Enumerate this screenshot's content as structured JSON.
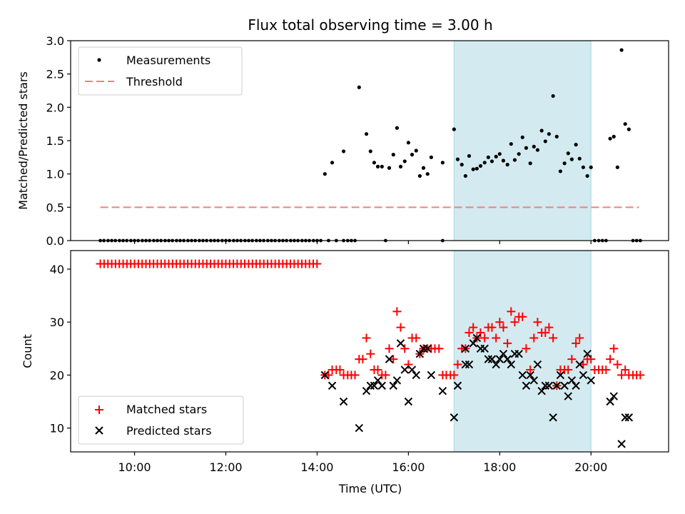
{
  "chart_data": {
    "type": "scatter",
    "title": "Flux total observing time = 3.00 h",
    "xlabel": "Time (UTC)",
    "x_ticks": [
      10,
      12,
      14,
      16,
      18,
      20
    ],
    "x_tick_labels": [
      "10:00",
      "12:00",
      "14:00",
      "16:00",
      "18:00",
      "20:00"
    ],
    "xlim": [
      8.6,
      21.7
    ],
    "shaded_interval": [
      17.0,
      20.0
    ],
    "shade_color": "#d3ebf0",
    "top": {
      "ylabel": "Matched/Predicted stars",
      "ylim": [
        0,
        3
      ],
      "y_ticks": [
        0.0,
        0.5,
        1.0,
        1.5,
        2.0,
        2.5,
        3.0
      ],
      "y_tick_labels": [
        "0.0",
        "0.5",
        "1.0",
        "1.5",
        "2.0",
        "2.5",
        "3.0"
      ],
      "threshold": {
        "value": 0.5,
        "x_range": [
          9.25,
          21.05
        ],
        "color": "#f08080"
      },
      "legend": [
        {
          "label": "Measurements",
          "marker": "dot",
          "color": "#000000"
        },
        {
          "label": "Threshold",
          "marker": "dash",
          "color": "#f08080"
        }
      ],
      "zero_points": [
        9.25,
        9.33,
        9.42,
        9.5,
        9.58,
        9.67,
        9.75,
        9.83,
        9.92,
        10.0,
        10.08,
        10.17,
        10.25,
        10.33,
        10.42,
        10.5,
        10.58,
        10.67,
        10.75,
        10.83,
        10.92,
        11.0,
        11.08,
        11.17,
        11.25,
        11.33,
        11.42,
        11.5,
        11.58,
        11.67,
        11.75,
        11.83,
        11.92,
        12.0,
        12.08,
        12.17,
        12.25,
        12.33,
        12.42,
        12.5,
        12.58,
        12.67,
        12.75,
        12.83,
        12.92,
        13.0,
        13.08,
        13.17,
        13.25,
        13.33,
        13.42,
        13.5,
        13.58,
        13.67,
        13.75,
        13.83,
        13.92,
        14.0,
        14.08,
        14.25,
        14.42,
        14.58,
        14.67,
        14.75,
        14.83,
        15.5,
        16.75,
        20.08,
        20.17,
        20.25,
        20.33,
        20.92,
        21.0,
        21.08
      ],
      "measurements": [
        {
          "x": 14.17,
          "y": 1.0
        },
        {
          "x": 14.33,
          "y": 1.17
        },
        {
          "x": 14.58,
          "y": 1.34
        },
        {
          "x": 14.92,
          "y": 2.3
        },
        {
          "x": 15.08,
          "y": 1.6
        },
        {
          "x": 15.17,
          "y": 1.34
        },
        {
          "x": 15.25,
          "y": 1.17
        },
        {
          "x": 15.33,
          "y": 1.11
        },
        {
          "x": 15.42,
          "y": 1.11
        },
        {
          "x": 15.58,
          "y": 1.09
        },
        {
          "x": 15.67,
          "y": 1.29
        },
        {
          "x": 15.75,
          "y": 1.69
        },
        {
          "x": 15.83,
          "y": 1.11
        },
        {
          "x": 15.92,
          "y": 1.19
        },
        {
          "x": 16.0,
          "y": 1.47
        },
        {
          "x": 16.08,
          "y": 1.29
        },
        {
          "x": 16.17,
          "y": 1.35
        },
        {
          "x": 16.25,
          "y": 0.97
        },
        {
          "x": 16.33,
          "y": 1.09
        },
        {
          "x": 16.42,
          "y": 1.0
        },
        {
          "x": 16.5,
          "y": 1.25
        },
        {
          "x": 16.75,
          "y": 1.17
        },
        {
          "x": 17.0,
          "y": 1.67
        },
        {
          "x": 17.08,
          "y": 1.22
        },
        {
          "x": 17.17,
          "y": 1.14
        },
        {
          "x": 17.25,
          "y": 0.97
        },
        {
          "x": 17.33,
          "y": 1.27
        },
        {
          "x": 17.42,
          "y": 1.07
        },
        {
          "x": 17.5,
          "y": 1.08
        },
        {
          "x": 17.58,
          "y": 1.12
        },
        {
          "x": 17.67,
          "y": 1.17
        },
        {
          "x": 17.75,
          "y": 1.25
        },
        {
          "x": 17.83,
          "y": 1.19
        },
        {
          "x": 17.92,
          "y": 1.26
        },
        {
          "x": 18.0,
          "y": 1.3
        },
        {
          "x": 18.08,
          "y": 1.2
        },
        {
          "x": 18.17,
          "y": 1.14
        },
        {
          "x": 18.25,
          "y": 1.45
        },
        {
          "x": 18.33,
          "y": 1.21
        },
        {
          "x": 18.42,
          "y": 1.3
        },
        {
          "x": 18.5,
          "y": 1.55
        },
        {
          "x": 18.58,
          "y": 1.39
        },
        {
          "x": 18.67,
          "y": 1.16
        },
        {
          "x": 18.75,
          "y": 1.41
        },
        {
          "x": 18.83,
          "y": 1.36
        },
        {
          "x": 18.92,
          "y": 1.65
        },
        {
          "x": 19.0,
          "y": 1.49
        },
        {
          "x": 19.08,
          "y": 1.6
        },
        {
          "x": 19.17,
          "y": 2.17
        },
        {
          "x": 19.25,
          "y": 1.56
        },
        {
          "x": 19.33,
          "y": 1.04
        },
        {
          "x": 19.42,
          "y": 1.16
        },
        {
          "x": 19.5,
          "y": 1.31
        },
        {
          "x": 19.58,
          "y": 1.22
        },
        {
          "x": 19.67,
          "y": 1.44
        },
        {
          "x": 19.75,
          "y": 1.23
        },
        {
          "x": 19.83,
          "y": 1.1
        },
        {
          "x": 19.92,
          "y": 0.97
        },
        {
          "x": 20.0,
          "y": 1.1
        },
        {
          "x": 20.42,
          "y": 1.53
        },
        {
          "x": 20.5,
          "y": 1.56
        },
        {
          "x": 20.58,
          "y": 1.1
        },
        {
          "x": 20.67,
          "y": 2.86
        },
        {
          "x": 20.75,
          "y": 1.75
        },
        {
          "x": 20.83,
          "y": 1.67
        }
      ]
    },
    "bottom": {
      "ylabel": "Count",
      "ylim": [
        5.5,
        43.5
      ],
      "y_ticks": [
        10,
        20,
        30,
        40
      ],
      "y_tick_labels": [
        "10",
        "20",
        "30",
        "40"
      ],
      "legend": [
        {
          "label": "Matched stars",
          "marker": "plus",
          "color": "#ff0000"
        },
        {
          "label": "Predicted stars",
          "marker": "x",
          "color": "#000000"
        }
      ],
      "matched_const": {
        "value": 41,
        "x_start": 9.25,
        "x_end": 14.08,
        "step": 0.0833
      },
      "matched": [
        {
          "x": 14.17,
          "y": 20
        },
        {
          "x": 14.25,
          "y": 20
        },
        {
          "x": 14.33,
          "y": 21
        },
        {
          "x": 14.42,
          "y": 21
        },
        {
          "x": 14.5,
          "y": 21
        },
        {
          "x": 14.58,
          "y": 20
        },
        {
          "x": 14.67,
          "y": 20
        },
        {
          "x": 14.75,
          "y": 20
        },
        {
          "x": 14.83,
          "y": 20
        },
        {
          "x": 14.92,
          "y": 23
        },
        {
          "x": 15.0,
          "y": 23
        },
        {
          "x": 15.08,
          "y": 27
        },
        {
          "x": 15.17,
          "y": 24
        },
        {
          "x": 15.25,
          "y": 21
        },
        {
          "x": 15.33,
          "y": 21
        },
        {
          "x": 15.42,
          "y": 20
        },
        {
          "x": 15.5,
          "y": 20
        },
        {
          "x": 15.58,
          "y": 25
        },
        {
          "x": 15.67,
          "y": 23
        },
        {
          "x": 15.75,
          "y": 32
        },
        {
          "x": 15.83,
          "y": 29
        },
        {
          "x": 15.92,
          "y": 25
        },
        {
          "x": 16.0,
          "y": 22
        },
        {
          "x": 16.08,
          "y": 27
        },
        {
          "x": 16.17,
          "y": 27
        },
        {
          "x": 16.25,
          "y": 24
        },
        {
          "x": 16.33,
          "y": 25
        },
        {
          "x": 16.42,
          "y": 25
        },
        {
          "x": 16.5,
          "y": 25
        },
        {
          "x": 16.58,
          "y": 25
        },
        {
          "x": 16.67,
          "y": 25
        },
        {
          "x": 16.75,
          "y": 20
        },
        {
          "x": 16.83,
          "y": 20
        },
        {
          "x": 16.92,
          "y": 20
        },
        {
          "x": 17.0,
          "y": 20
        },
        {
          "x": 17.08,
          "y": 22
        },
        {
          "x": 17.17,
          "y": 25
        },
        {
          "x": 17.25,
          "y": 25
        },
        {
          "x": 17.33,
          "y": 28
        },
        {
          "x": 17.42,
          "y": 29
        },
        {
          "x": 17.5,
          "y": 27
        },
        {
          "x": 17.58,
          "y": 28
        },
        {
          "x": 17.67,
          "y": 27
        },
        {
          "x": 17.75,
          "y": 29
        },
        {
          "x": 17.83,
          "y": 29
        },
        {
          "x": 17.92,
          "y": 27
        },
        {
          "x": 18.0,
          "y": 30
        },
        {
          "x": 18.08,
          "y": 29
        },
        {
          "x": 18.17,
          "y": 26
        },
        {
          "x": 18.25,
          "y": 32
        },
        {
          "x": 18.33,
          "y": 30
        },
        {
          "x": 18.42,
          "y": 31
        },
        {
          "x": 18.5,
          "y": 31
        },
        {
          "x": 18.58,
          "y": 25
        },
        {
          "x": 18.67,
          "y": 21
        },
        {
          "x": 18.75,
          "y": 27
        },
        {
          "x": 18.83,
          "y": 30
        },
        {
          "x": 18.92,
          "y": 28
        },
        {
          "x": 19.0,
          "y": 28
        },
        {
          "x": 19.08,
          "y": 29
        },
        {
          "x": 19.17,
          "y": 27
        },
        {
          "x": 19.25,
          "y": 18
        },
        {
          "x": 19.33,
          "y": 21
        },
        {
          "x": 19.42,
          "y": 21
        },
        {
          "x": 19.5,
          "y": 21
        },
        {
          "x": 19.58,
          "y": 23
        },
        {
          "x": 19.67,
          "y": 26
        },
        {
          "x": 19.75,
          "y": 27
        },
        {
          "x": 19.83,
          "y": 22
        },
        {
          "x": 19.92,
          "y": 23
        },
        {
          "x": 20.0,
          "y": 23
        },
        {
          "x": 20.08,
          "y": 21
        },
        {
          "x": 20.17,
          "y": 21
        },
        {
          "x": 20.25,
          "y": 21
        },
        {
          "x": 20.33,
          "y": 21
        },
        {
          "x": 20.42,
          "y": 23
        },
        {
          "x": 20.5,
          "y": 25
        },
        {
          "x": 20.58,
          "y": 22
        },
        {
          "x": 20.67,
          "y": 20
        },
        {
          "x": 20.75,
          "y": 21
        },
        {
          "x": 20.83,
          "y": 20
        },
        {
          "x": 20.92,
          "y": 20
        },
        {
          "x": 21.0,
          "y": 20
        },
        {
          "x": 21.08,
          "y": 20
        }
      ],
      "predicted": [
        {
          "x": 14.17,
          "y": 20
        },
        {
          "x": 14.33,
          "y": 18
        },
        {
          "x": 14.58,
          "y": 15
        },
        {
          "x": 14.92,
          "y": 10
        },
        {
          "x": 15.08,
          "y": 17
        },
        {
          "x": 15.17,
          "y": 18
        },
        {
          "x": 15.25,
          "y": 18
        },
        {
          "x": 15.33,
          "y": 19
        },
        {
          "x": 15.42,
          "y": 18
        },
        {
          "x": 15.58,
          "y": 23
        },
        {
          "x": 15.67,
          "y": 18
        },
        {
          "x": 15.75,
          "y": 19
        },
        {
          "x": 15.83,
          "y": 26
        },
        {
          "x": 15.92,
          "y": 21
        },
        {
          "x": 16.0,
          "y": 15
        },
        {
          "x": 16.08,
          "y": 21
        },
        {
          "x": 16.17,
          "y": 20
        },
        {
          "x": 16.25,
          "y": 24
        },
        {
          "x": 16.33,
          "y": 25
        },
        {
          "x": 16.42,
          "y": 25
        },
        {
          "x": 16.5,
          "y": 20
        },
        {
          "x": 16.75,
          "y": 17
        },
        {
          "x": 17.0,
          "y": 12
        },
        {
          "x": 17.08,
          "y": 18
        },
        {
          "x": 17.25,
          "y": 25
        },
        {
          "x": 17.25,
          "y": 22
        },
        {
          "x": 17.33,
          "y": 22
        },
        {
          "x": 17.42,
          "y": 26
        },
        {
          "x": 17.5,
          "y": 27
        },
        {
          "x": 17.58,
          "y": 25
        },
        {
          "x": 17.67,
          "y": 25
        },
        {
          "x": 17.75,
          "y": 23
        },
        {
          "x": 17.83,
          "y": 23
        },
        {
          "x": 17.92,
          "y": 22
        },
        {
          "x": 18.0,
          "y": 23
        },
        {
          "x": 18.08,
          "y": 24
        },
        {
          "x": 18.17,
          "y": 23
        },
        {
          "x": 18.25,
          "y": 22
        },
        {
          "x": 18.33,
          "y": 24
        },
        {
          "x": 18.42,
          "y": 24
        },
        {
          "x": 18.5,
          "y": 20
        },
        {
          "x": 18.58,
          "y": 18
        },
        {
          "x": 18.67,
          "y": 20
        },
        {
          "x": 18.75,
          "y": 19
        },
        {
          "x": 18.83,
          "y": 22
        },
        {
          "x": 18.92,
          "y": 17
        },
        {
          "x": 19.0,
          "y": 18
        },
        {
          "x": 19.08,
          "y": 18
        },
        {
          "x": 19.17,
          "y": 12
        },
        {
          "x": 19.25,
          "y": 18
        },
        {
          "x": 19.33,
          "y": 20
        },
        {
          "x": 19.42,
          "y": 18
        },
        {
          "x": 19.5,
          "y": 16
        },
        {
          "x": 19.58,
          "y": 19
        },
        {
          "x": 19.67,
          "y": 18
        },
        {
          "x": 19.75,
          "y": 22
        },
        {
          "x": 19.83,
          "y": 20
        },
        {
          "x": 19.92,
          "y": 24
        },
        {
          "x": 20.0,
          "y": 19
        },
        {
          "x": 20.42,
          "y": 15
        },
        {
          "x": 20.5,
          "y": 16
        },
        {
          "x": 20.67,
          "y": 7
        },
        {
          "x": 20.75,
          "y": 12
        },
        {
          "x": 20.83,
          "y": 12
        }
      ]
    }
  }
}
